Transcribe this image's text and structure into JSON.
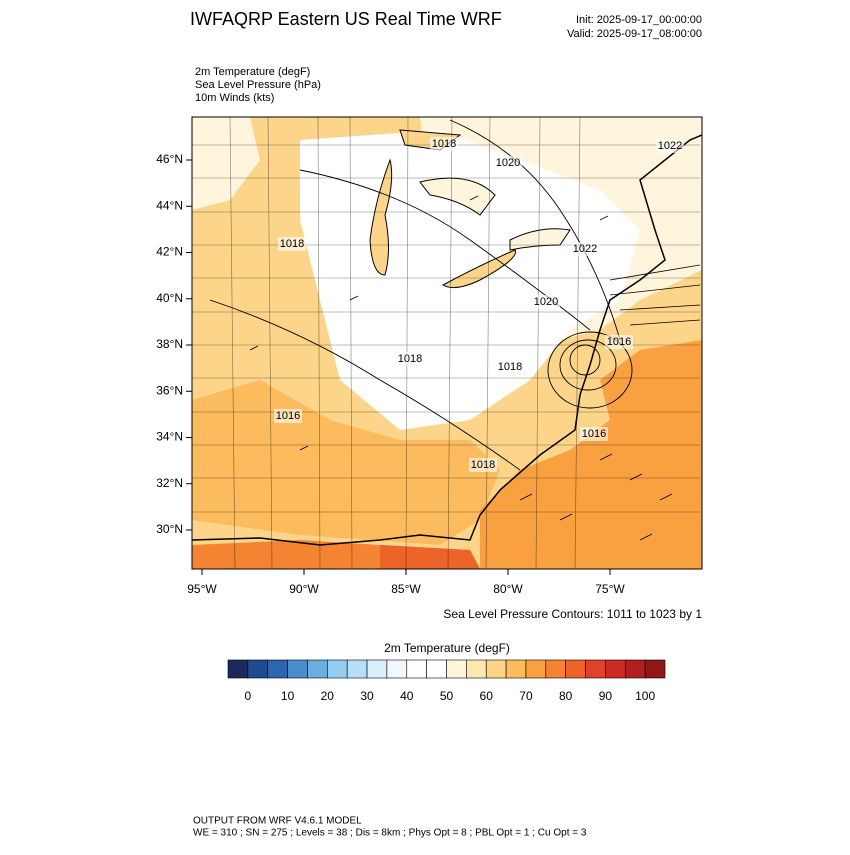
{
  "header": {
    "title": "IWFAQRP Eastern US Real Time WRF",
    "init": "Init: 2025-09-17_00:00:00",
    "valid": "Valid: 2025-09-17_08:00:00"
  },
  "fields": [
    "2m Temperature   (degF)",
    "Sea Level Pressure   (hPa)",
    "10m Winds   (kts)"
  ],
  "map": {
    "lat_labels": [
      "46°N",
      "44°N",
      "42°N",
      "40°N",
      "38°N",
      "36°N",
      "34°N",
      "32°N",
      "30°N"
    ],
    "lon_labels": [
      "95°W",
      "90°W",
      "85°W",
      "80°W",
      "75°W"
    ],
    "contour_labels": [
      "1018",
      "1020",
      "1022",
      "1018",
      "1022",
      "1020",
      "1016",
      "1018",
      "1018",
      "1016",
      "1016",
      "1018"
    ],
    "contour_note": "Sea Level Pressure Contours: 1011 to 1023 by 1"
  },
  "colorbar": {
    "title": "2m Temperature  (degF)",
    "labels": [
      "0",
      "10",
      "20",
      "30",
      "40",
      "50",
      "60",
      "70",
      "80",
      "90",
      "100"
    ],
    "colors": [
      "#1a2a5c",
      "#1f4a8c",
      "#2b66b0",
      "#4a8dcc",
      "#6aaee0",
      "#93cdf0",
      "#b8e0f5",
      "#dbeffa",
      "#f0f8fd",
      "#ffffff",
      "#ffffff",
      "#fff5dc",
      "#ffe8b0",
      "#fdd58a",
      "#fcbb5c",
      "#f9a040",
      "#f48432",
      "#ec6428",
      "#e04128",
      "#cc2a25",
      "#b01e20",
      "#8f1717"
    ]
  },
  "footer": [
    "OUTPUT FROM WRF V4.6.1 MODEL",
    "WE = 310 ; SN = 275 ; Levels = 38 ; Dis = 8km ; Phys Opt = 8 ; PBL Opt = 1 ; Cu Opt = 3"
  ]
}
